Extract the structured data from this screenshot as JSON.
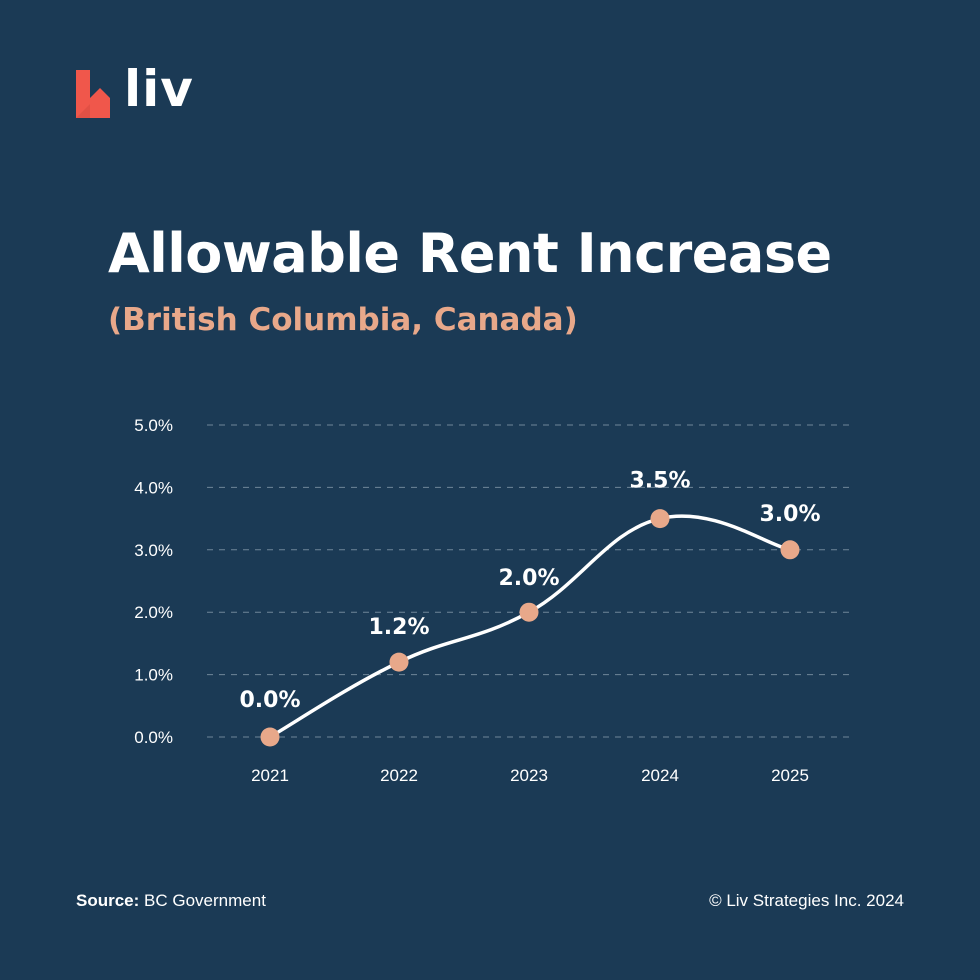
{
  "brand": {
    "name": "liv",
    "logo_color": "#f0574b",
    "icon": "liv-house-logo-icon"
  },
  "header": {
    "title": "Allowable Rent Increase",
    "subtitle": "(British Columbia, Canada)"
  },
  "colors": {
    "background": "#1b3a55",
    "accent": "#e8a88a",
    "line": "#ffffff",
    "grid": "#6f8699",
    "text": "#ffffff"
  },
  "chart_data": {
    "type": "line",
    "title": "Allowable Rent Increase",
    "subtitle": "(British Columbia, Canada)",
    "xlabel": "",
    "ylabel": "",
    "categories": [
      "2021",
      "2022",
      "2023",
      "2024",
      "2025"
    ],
    "series": [
      {
        "name": "Allowable Rent Increase",
        "values": [
          0.0,
          1.2,
          2.0,
          3.5,
          3.0
        ],
        "data_labels": [
          "0.0%",
          "1.2%",
          "2.0%",
          "3.5%",
          "3.0%"
        ]
      }
    ],
    "y_ticks": [
      "0.0%",
      "1.0%",
      "2.0%",
      "3.0%",
      "4.0%",
      "5.0%"
    ],
    "ylim": [
      0,
      5
    ],
    "grid": "horizontal dashed",
    "legend": "none",
    "line_style": "smooth curve"
  },
  "footer": {
    "source_label": "Source:",
    "source_value": "BC Government",
    "copyright": "© Liv Strategies Inc. 2024"
  }
}
